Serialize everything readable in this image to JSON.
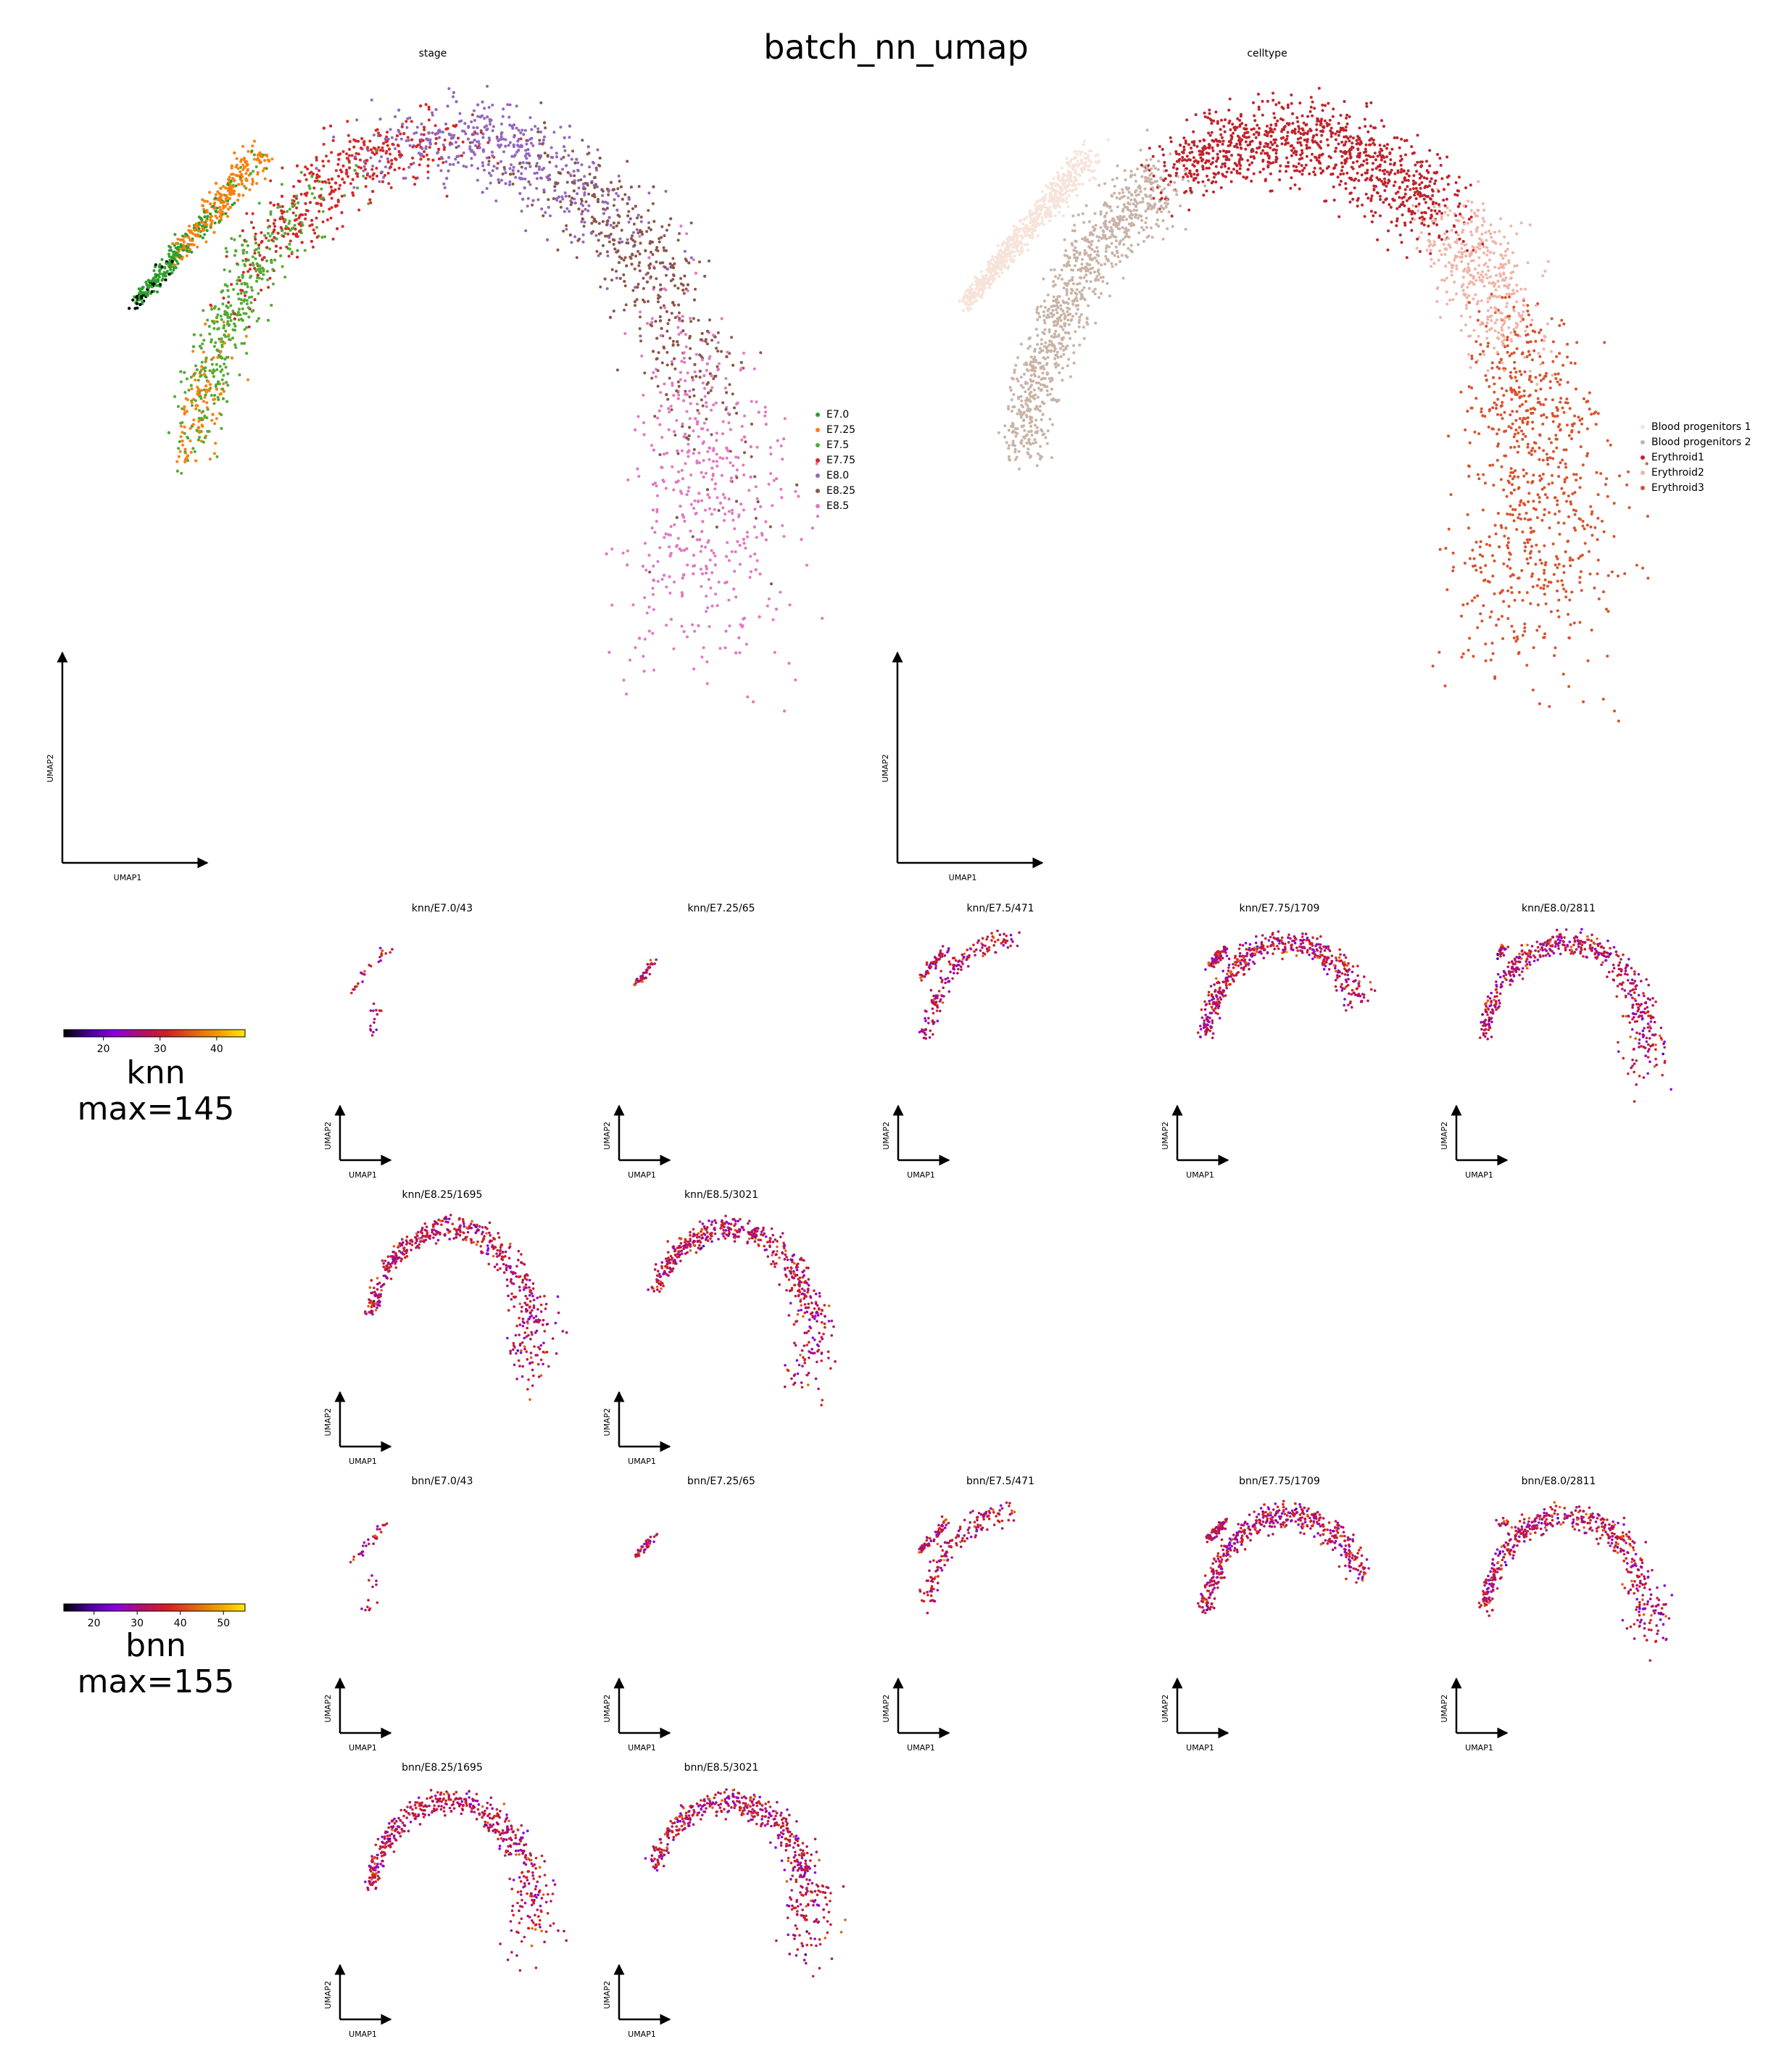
{
  "title": "batch_nn_umap",
  "axis_labels": {
    "x": "UMAP1",
    "y": "UMAP2"
  },
  "colors": {
    "stage": [
      "#2ca02c",
      "#ff7f0e",
      "#55aa33",
      "#d62728",
      "#9467bd",
      "#8c564b",
      "#e377c2"
    ],
    "celltype": [
      "#f6e3da",
      "#c9b3a7",
      "#c0232c",
      "#f0b4a8",
      "#d9532e"
    ],
    "gnuplot": [
      "#000000",
      "#4b00a0",
      "#8a00e0",
      "#b0106a",
      "#d02020",
      "#e06010",
      "#f0a000",
      "#ffe600"
    ]
  },
  "main_panels": [
    {
      "name": "stage",
      "title": "stage",
      "legend": [
        {
          "label": "E7.0",
          "color": "#2ca02c"
        },
        {
          "label": "E7.25",
          "color": "#ff7f0e"
        },
        {
          "label": "E7.5",
          "color": "#55aa33"
        },
        {
          "label": "E7.75",
          "color": "#d62728"
        },
        {
          "label": "E8.0",
          "color": "#9467bd"
        },
        {
          "label": "E8.25",
          "color": "#8c564b"
        },
        {
          "label": "E8.5",
          "color": "#e377c2"
        }
      ]
    },
    {
      "name": "celltype",
      "title": "celltype",
      "legend": [
        {
          "label": "Blood progenitors 1",
          "color": "#f6e3da"
        },
        {
          "label": "Blood progenitors 2",
          "color": "#c9b3a7"
        },
        {
          "label": "Erythroid1",
          "color": "#c0232c"
        },
        {
          "label": "Erythroid2",
          "color": "#f0b4a8"
        },
        {
          "label": "Erythroid3",
          "color": "#d9532e"
        }
      ]
    }
  ],
  "groups": [
    {
      "name": "knn",
      "label": "knn",
      "max_label": "max=145",
      "colorbar_ticks": [
        20,
        30,
        40
      ],
      "colorbar_range": [
        13,
        45
      ],
      "panels": [
        "knn/E7.0/43",
        "knn/E7.25/65",
        "knn/E7.5/471",
        "knn/E7.75/1709",
        "knn/E8.0/2811",
        "knn/E8.25/1695",
        "knn/E8.5/3021"
      ]
    },
    {
      "name": "bnn",
      "label": "bnn",
      "max_label": "max=155",
      "colorbar_ticks": [
        20,
        30,
        40,
        50
      ],
      "colorbar_range": [
        13,
        55
      ],
      "panels": [
        "bnn/E7.0/43",
        "bnn/E7.25/65",
        "bnn/E7.5/471",
        "bnn/E7.75/1709",
        "bnn/E8.0/2811",
        "bnn/E8.25/1695",
        "bnn/E8.5/3021"
      ]
    }
  ],
  "chart_data": {
    "type": "scatter",
    "title": "batch_nn_umap",
    "xlabel": "UMAP1",
    "ylabel": "UMAP2",
    "grid": false,
    "panels": [
      {
        "title": "stage",
        "color_by": "categorical",
        "categories": [
          "E7.0",
          "E7.25",
          "E7.5",
          "E7.75",
          "E8.0",
          "E8.25",
          "E8.5"
        ],
        "legend": "right"
      },
      {
        "title": "celltype",
        "color_by": "categorical",
        "categories": [
          "Blood progenitors 1",
          "Blood progenitors 2",
          "Erythroid1",
          "Erythroid2",
          "Erythroid3"
        ],
        "legend": "right"
      },
      {
        "title": "knn/E7.0/43",
        "n": 43
      },
      {
        "title": "knn/E7.25/65",
        "n": 65
      },
      {
        "title": "knn/E7.5/471",
        "n": 471
      },
      {
        "title": "knn/E7.75/1709",
        "n": 1709
      },
      {
        "title": "knn/E8.0/2811",
        "n": 2811
      },
      {
        "title": "knn/E8.25/1695",
        "n": 1695
      },
      {
        "title": "knn/E8.5/3021",
        "n": 3021
      },
      {
        "title": "bnn/E7.0/43",
        "n": 43
      },
      {
        "title": "bnn/E7.25/65",
        "n": 65
      },
      {
        "title": "bnn/E7.5/471",
        "n": 471
      },
      {
        "title": "bnn/E7.75/1709",
        "n": 1709
      },
      {
        "title": "bnn/E8.0/2811",
        "n": 2811
      },
      {
        "title": "bnn/E8.25/1695",
        "n": 1695
      },
      {
        "title": "bnn/E8.5/3021",
        "n": 3021
      }
    ]
  }
}
